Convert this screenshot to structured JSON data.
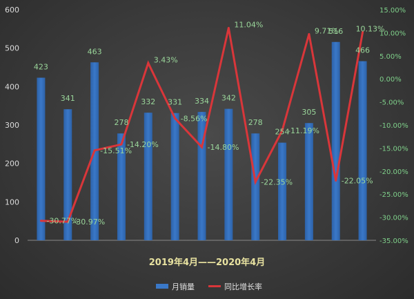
{
  "chart_data": {
    "type": "bar",
    "categories": [
      "",
      "",
      "",
      "",
      "",
      "",
      "",
      "",
      "",
      "",
      "",
      "",
      ""
    ],
    "xlabel": "2019年4月——2020年4月",
    "ylim": [
      0,
      600
    ],
    "y2lim": [
      -35,
      15
    ],
    "yticks": [
      "0",
      "100",
      "200",
      "300",
      "400",
      "500",
      "600"
    ],
    "y2ticks": [
      "15.00%",
      "10.00%",
      "5.00%",
      "0.00%",
      "-5.00%",
      "-10.00%",
      "-15.00%",
      "-20.00%",
      "-25.00%",
      "-30.00%",
      "-35.00%"
    ],
    "series": [
      {
        "name": "月销量",
        "type": "bar",
        "axis": "left",
        "color": "#3a78c8",
        "values": [
          423,
          341,
          463,
          278,
          332,
          331,
          334,
          342,
          278,
          254,
          305,
          516,
          466
        ],
        "labels": [
          "423",
          "341",
          "463",
          "278",
          "332",
          "331",
          "334",
          "342",
          "278",
          "254",
          "305",
          "516",
          "466"
        ]
      },
      {
        "name": "同比增长率",
        "type": "line",
        "axis": "right",
        "color": "#d9363a",
        "values": [
          -30.77,
          -30.97,
          -15.51,
          -14.2,
          3.43,
          -8.56,
          -14.8,
          11.04,
          -22.35,
          -11.19,
          9.71,
          -22.05,
          10.13
        ],
        "labels": [
          "-30.77%",
          "-30.97%",
          "-15.51%",
          "-14.20%",
          "3.43%",
          "-8.56%",
          "-14.80%",
          "11.04%",
          "-22.35%",
          "-11.19%",
          "9.71%",
          "-22.05%",
          "10.13%"
        ]
      }
    ],
    "legend_position": "bottom",
    "grid": false
  }
}
